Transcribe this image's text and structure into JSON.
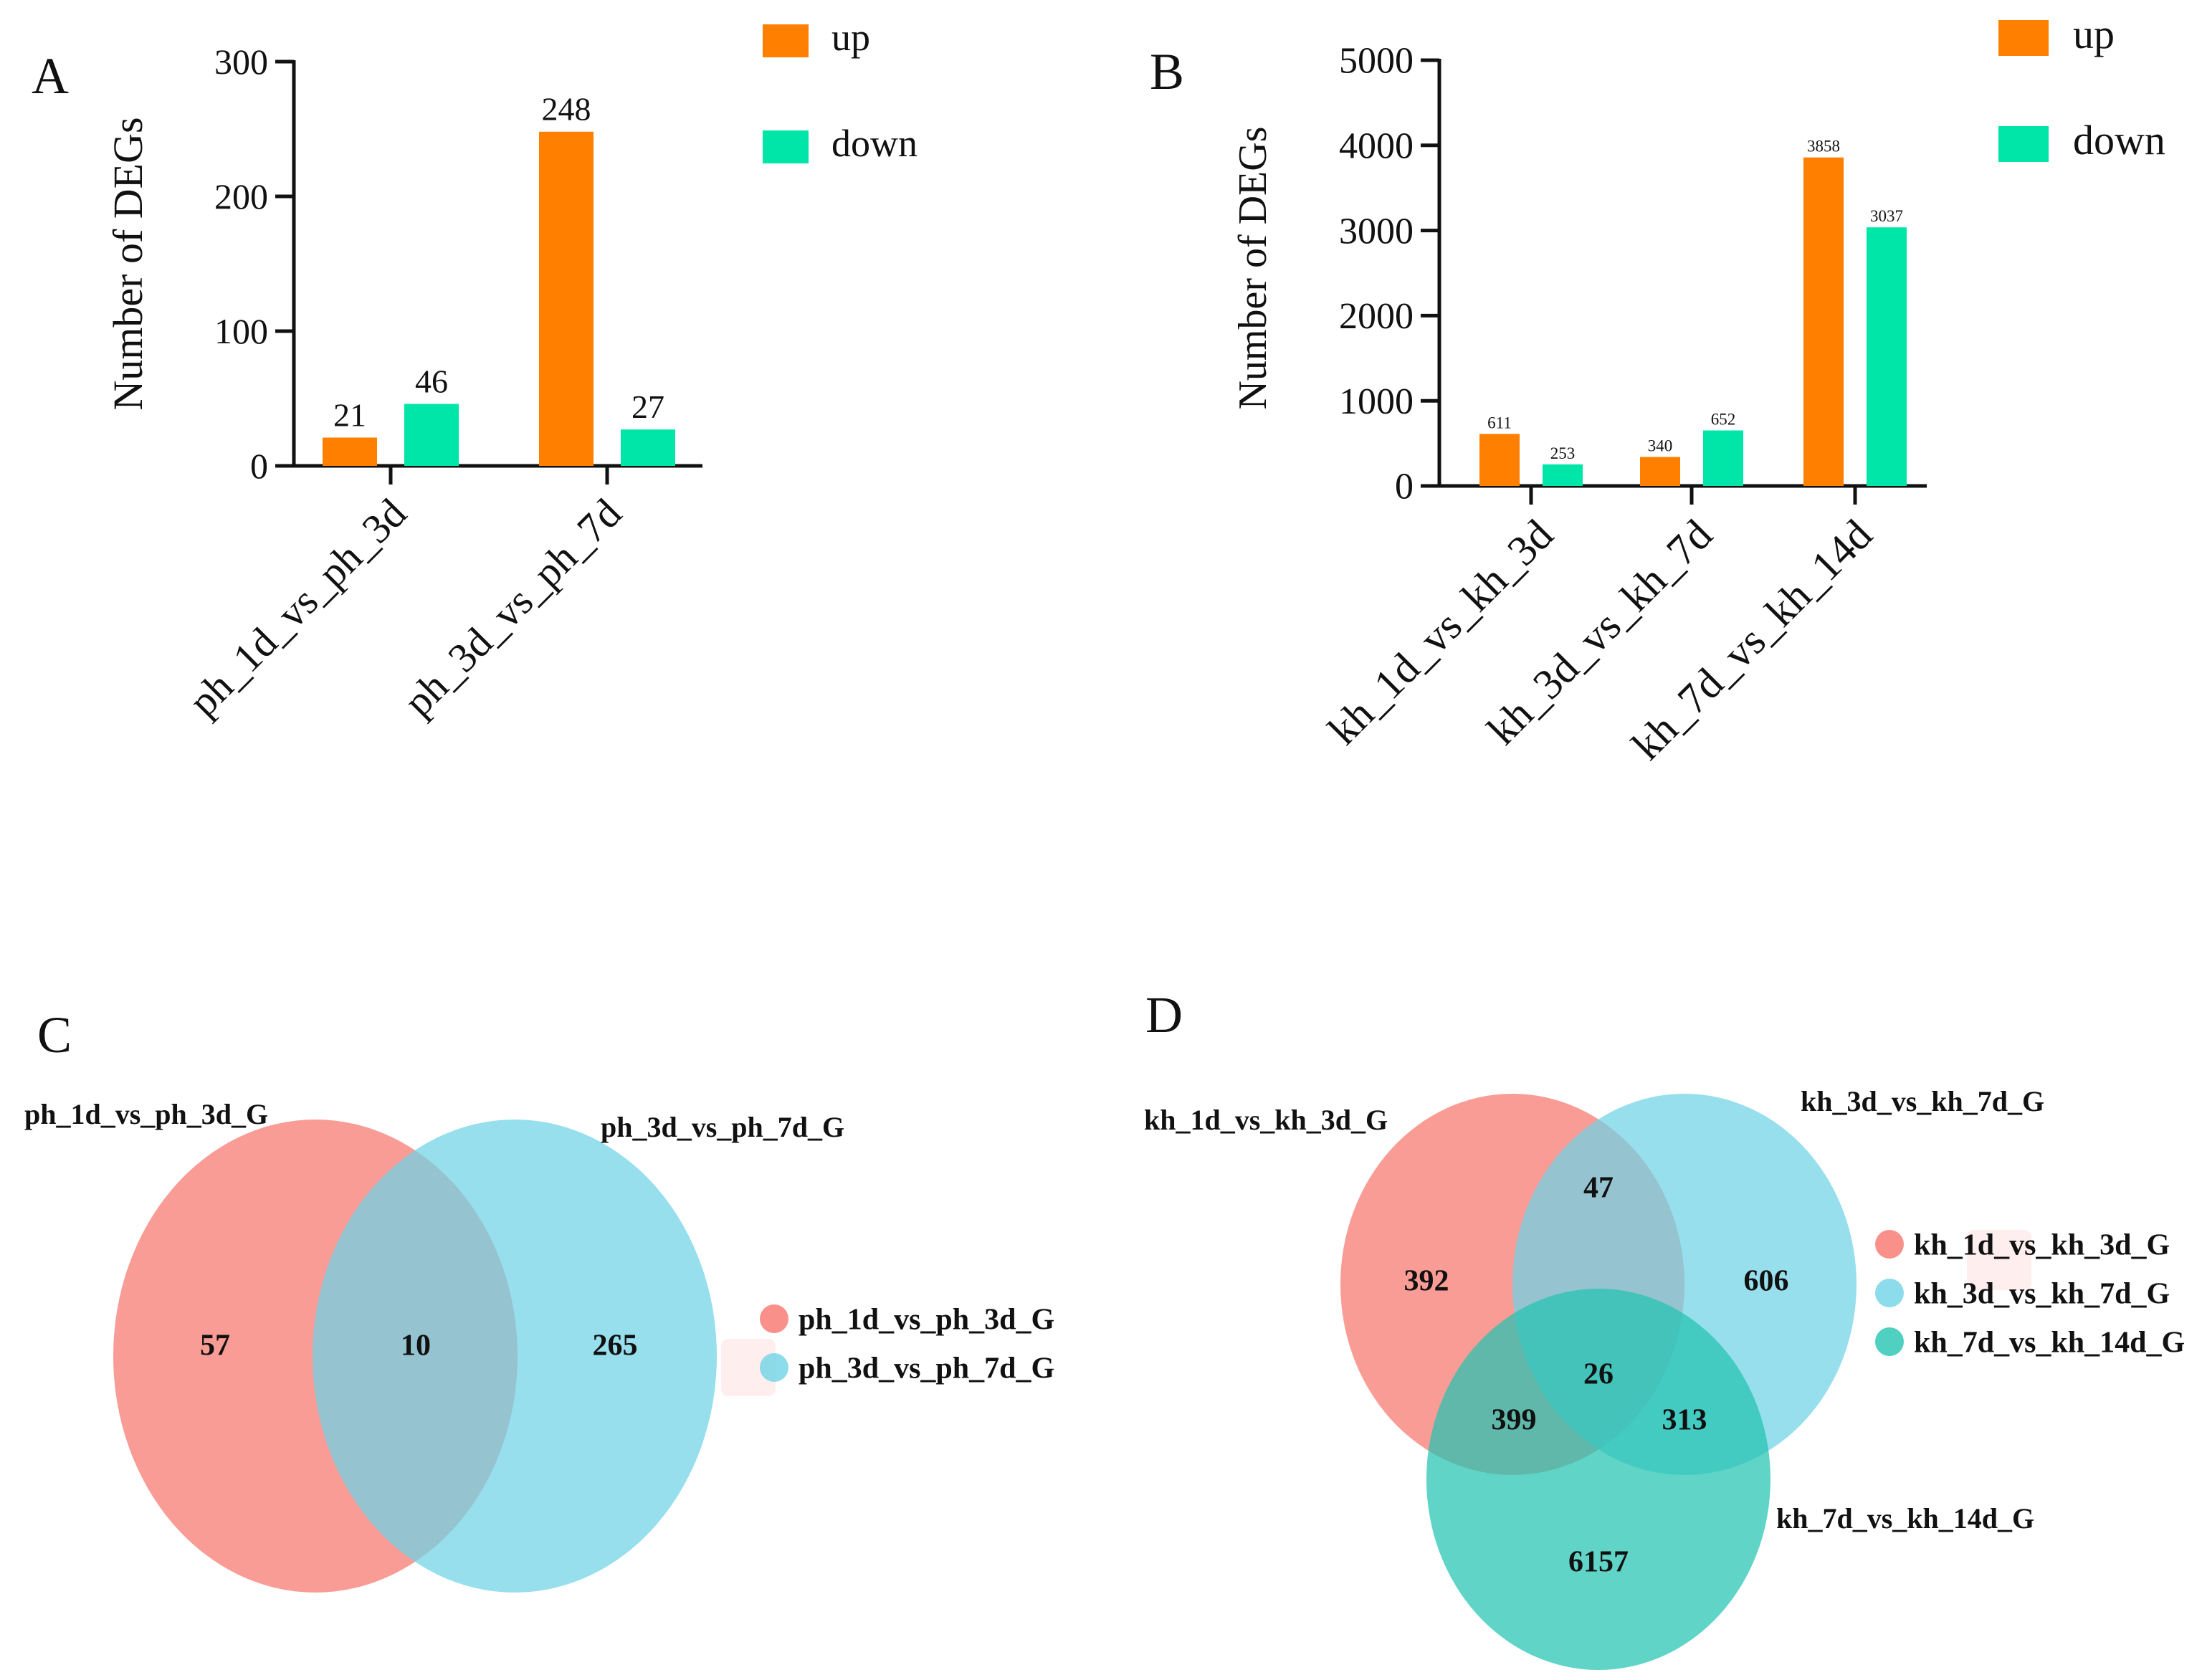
{
  "chart_data": [
    {
      "panel": "A",
      "type": "bar",
      "ylabel": "Number of DEGs",
      "ylim": [
        0,
        300
      ],
      "yticks": [
        0,
        100,
        200,
        300
      ],
      "categories": [
        "ph_1d_vs_ph_3d",
        "ph_3d_vs_ph_7d"
      ],
      "series": [
        {
          "name": "up",
          "color": "#ff8000",
          "values": [
            21,
            248
          ],
          "labels": [
            "21",
            "248"
          ]
        },
        {
          "name": "down",
          "color": "#00e6a8",
          "values": [
            46,
            27
          ],
          "labels": [
            "46",
            "27"
          ]
        }
      ],
      "legend": {
        "position": "top-right",
        "items": [
          "up",
          "down"
        ]
      }
    },
    {
      "panel": "B",
      "type": "bar",
      "ylabel": "Number of  DEGs",
      "ylim": [
        0,
        5000
      ],
      "yticks": [
        0,
        1000,
        2000,
        3000,
        4000,
        5000
      ],
      "categories": [
        "kh_1d_vs_kh_3d",
        "kh_3d_vs_kh_7d",
        "kh_7d_vs_kh_14d"
      ],
      "series": [
        {
          "name": "up",
          "color": "#ff8000",
          "values": [
            611,
            340,
            3858
          ],
          "labels": [
            "611",
            "340",
            "3858"
          ]
        },
        {
          "name": "down",
          "color": "#00e6a8",
          "values": [
            253,
            652,
            3037
          ],
          "labels": [
            "253",
            "652",
            "3037"
          ]
        }
      ],
      "legend": {
        "position": "top-right",
        "items": [
          "up",
          "down"
        ]
      }
    },
    {
      "panel": "C",
      "type": "venn",
      "sets": [
        {
          "name": "ph_1d_vs_ph_3d_G",
          "color": "#f8766d"
        },
        {
          "name": "ph_3d_vs_ph_7d_G",
          "color": "#6fd3e6"
        }
      ],
      "regions": [
        {
          "sets": [
            "ph_1d_vs_ph_3d_G"
          ],
          "count": 57
        },
        {
          "sets": [
            "ph_1d_vs_ph_3d_G",
            "ph_3d_vs_ph_7d_G"
          ],
          "count": 10
        },
        {
          "sets": [
            "ph_3d_vs_ph_7d_G"
          ],
          "count": 265
        }
      ],
      "legend": {
        "position": "right",
        "items": [
          "ph_1d_vs_ph_3d_G",
          "ph_3d_vs_ph_7d_G"
        ]
      }
    },
    {
      "panel": "D",
      "type": "venn",
      "sets": [
        {
          "name": "kh_1d_vs_kh_3d_G",
          "color": "#f8766d"
        },
        {
          "name": "kh_3d_vs_kh_7d_G",
          "color": "#6fd3e6"
        },
        {
          "name": "kh_7d_vs_kh_14d_G",
          "color": "#23c4b2"
        }
      ],
      "regions": [
        {
          "sets": [
            "kh_1d_vs_kh_3d_G"
          ],
          "count": 392
        },
        {
          "sets": [
            "kh_1d_vs_kh_3d_G",
            "kh_3d_vs_kh_7d_G"
          ],
          "count": 47
        },
        {
          "sets": [
            "kh_3d_vs_kh_7d_G"
          ],
          "count": 606
        },
        {
          "sets": [
            "kh_1d_vs_kh_3d_G",
            "kh_3d_vs_kh_7d_G",
            "kh_7d_vs_kh_14d_G"
          ],
          "count": 26
        },
        {
          "sets": [
            "kh_1d_vs_kh_3d_G",
            "kh_7d_vs_kh_14d_G"
          ],
          "count": 399
        },
        {
          "sets": [
            "kh_3d_vs_kh_7d_G",
            "kh_7d_vs_kh_14d_G"
          ],
          "count": 313
        },
        {
          "sets": [
            "kh_7d_vs_kh_14d_G"
          ],
          "count": 6157
        }
      ],
      "legend": {
        "position": "right",
        "items": [
          "kh_1d_vs_kh_3d_G",
          "kh_3d_vs_kh_7d_G",
          "kh_7d_vs_kh_14d_G"
        ]
      }
    }
  ]
}
